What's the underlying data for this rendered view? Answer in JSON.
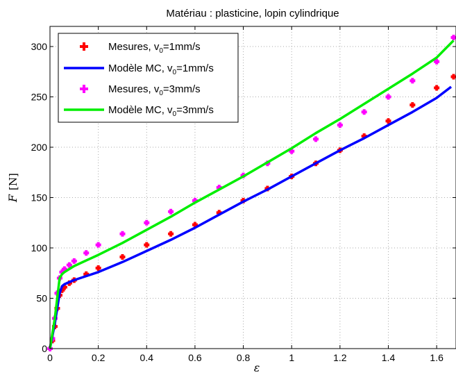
{
  "chart_data": {
    "type": "line",
    "title": "Matériau : plasticine, lopin cylindrique",
    "xlabel": "ε",
    "ylabel": "F",
    "yunit": "[N]",
    "xlim": [
      0,
      1.68
    ],
    "ylim": [
      0,
      320
    ],
    "xticks": [
      0,
      0.2,
      0.4,
      0.6,
      0.8,
      1,
      1.2,
      1.4,
      1.6
    ],
    "xtick_labels": [
      "0",
      "0.2",
      "0.4",
      "0.6",
      "0.8",
      "1",
      "1.2",
      "1.4",
      "1.6"
    ],
    "yticks": [
      0,
      50,
      100,
      150,
      200,
      250,
      300
    ],
    "ytick_labels": [
      "0",
      "50",
      "100",
      "150",
      "200",
      "250",
      "300"
    ],
    "grid": true,
    "legend_position": "top-left",
    "series": [
      {
        "name": "Mesures, v0=1mm/s",
        "legend_main": "Mesures, v",
        "legend_sub": "0",
        "legend_rest": "=1mm/s",
        "style": "markers",
        "color": "#ff0000",
        "x": [
          0.0,
          0.01,
          0.02,
          0.03,
          0.04,
          0.05,
          0.06,
          0.08,
          0.1,
          0.15,
          0.2,
          0.3,
          0.4,
          0.5,
          0.6,
          0.7,
          0.8,
          0.9,
          1.0,
          1.1,
          1.2,
          1.3,
          1.4,
          1.5,
          1.6,
          1.67
        ],
        "y": [
          0,
          8,
          22,
          40,
          53,
          58,
          61,
          65,
          68,
          74,
          80,
          91,
          103,
          114,
          123,
          135,
          147,
          159,
          171,
          184,
          197,
          211,
          226,
          242,
          259,
          270
        ]
      },
      {
        "name": "Modèle MC, v0=1mm/s",
        "legend_main": "Modèle MC, v",
        "legend_sub": "0",
        "legend_rest": "=1mm/s",
        "style": "line",
        "color": "#0000ff",
        "x": [
          0.0,
          0.02,
          0.04,
          0.05,
          0.06,
          0.08,
          0.1,
          0.2,
          0.3,
          0.4,
          0.5,
          0.6,
          0.7,
          0.8,
          0.9,
          1.0,
          1.1,
          1.2,
          1.3,
          1.4,
          1.5,
          1.6,
          1.66
        ],
        "y": [
          0,
          25,
          55,
          62,
          64,
          66,
          68,
          76,
          86,
          97,
          108,
          120,
          133,
          146,
          158,
          171,
          184,
          197,
          209,
          222,
          235,
          249,
          260
        ]
      },
      {
        "name": "Mesures, v0=3mm/s",
        "legend_main": "Mesures, v",
        "legend_sub": "0",
        "legend_rest": "=3mm/s",
        "style": "markers",
        "color": "#ff00ff",
        "x": [
          0.0,
          0.01,
          0.02,
          0.03,
          0.04,
          0.05,
          0.06,
          0.08,
          0.1,
          0.15,
          0.2,
          0.3,
          0.4,
          0.5,
          0.6,
          0.7,
          0.8,
          0.9,
          1.0,
          1.1,
          1.2,
          1.3,
          1.4,
          1.5,
          1.6,
          1.67
        ],
        "y": [
          0,
          10,
          30,
          55,
          70,
          76,
          79,
          83,
          87,
          95,
          103,
          114,
          125,
          136,
          147,
          160,
          172,
          184,
          196,
          208,
          222,
          235,
          250,
          266,
          285,
          309
        ]
      },
      {
        "name": "Modèle MC, v0=3mm/s",
        "legend_main": "Modèle MC, v",
        "legend_sub": "0",
        "legend_rest": "=3mm/s",
        "style": "line",
        "color": "#00ee00",
        "x": [
          0.0,
          0.02,
          0.04,
          0.05,
          0.06,
          0.08,
          0.1,
          0.2,
          0.3,
          0.4,
          0.5,
          0.6,
          0.7,
          0.8,
          0.9,
          1.0,
          1.1,
          1.2,
          1.3,
          1.4,
          1.5,
          1.6,
          1.67
        ],
        "y": [
          0,
          30,
          70,
          74,
          76,
          79,
          82,
          93,
          105,
          118,
          131,
          145,
          158,
          171,
          185,
          199,
          214,
          228,
          243,
          258,
          273,
          289,
          306
        ]
      }
    ]
  }
}
